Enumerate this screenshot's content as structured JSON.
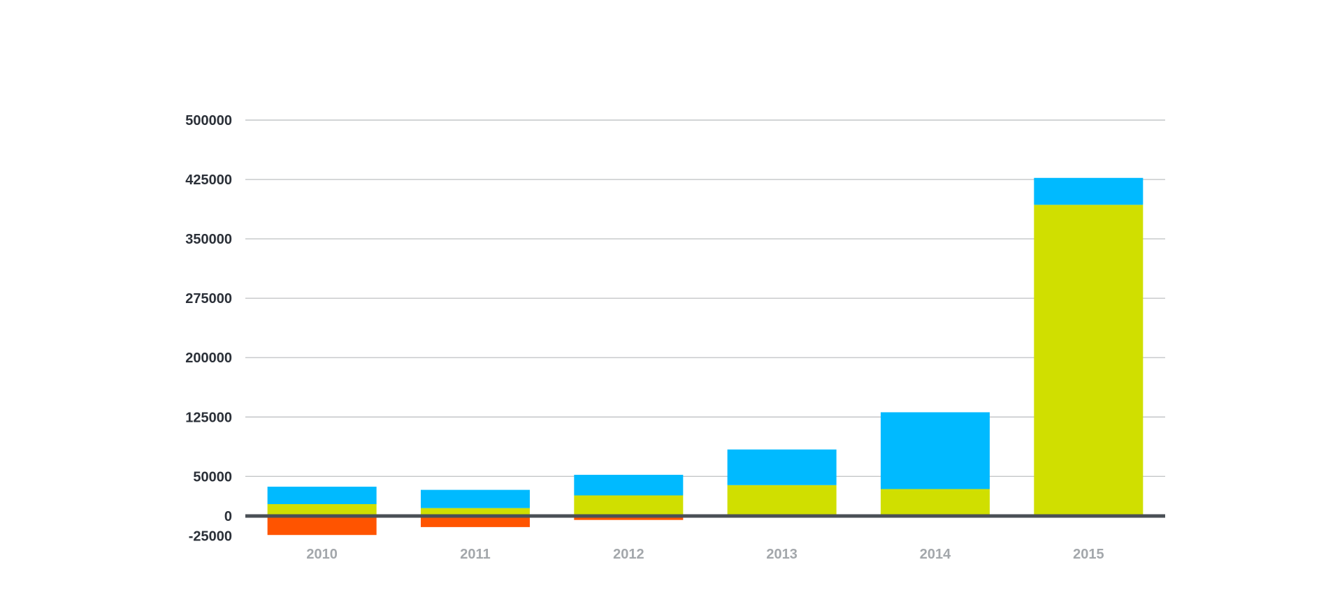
{
  "chart_data": {
    "type": "bar",
    "stacked": true,
    "categories": [
      "2010",
      "2011",
      "2012",
      "2013",
      "2014",
      "2015"
    ],
    "series": [
      {
        "color": "#d0df00",
        "values": [
          15000,
          10000,
          26000,
          39000,
          34000,
          393000
        ]
      },
      {
        "color": "#00baff",
        "values": [
          22000,
          23000,
          26000,
          45000,
          97000,
          34000
        ]
      },
      {
        "color": "#ff5400",
        "values": [
          -24000,
          -14000,
          -5000,
          0,
          0,
          0
        ]
      }
    ],
    "y_ticks": [
      {
        "value": -25000,
        "label": "-25000"
      },
      {
        "value": 0,
        "label": "0"
      },
      {
        "value": 50000,
        "label": "50000"
      },
      {
        "value": 125000,
        "label": "125000"
      },
      {
        "value": 200000,
        "label": "200000"
      },
      {
        "value": 275000,
        "label": "275000"
      },
      {
        "value": 350000,
        "label": "350000"
      },
      {
        "value": 425000,
        "label": "425000"
      },
      {
        "value": 500000,
        "label": "500000"
      }
    ],
    "ylim": [
      -25000,
      500000
    ],
    "grid": true,
    "title": "",
    "xlabel": "",
    "ylabel": ""
  }
}
